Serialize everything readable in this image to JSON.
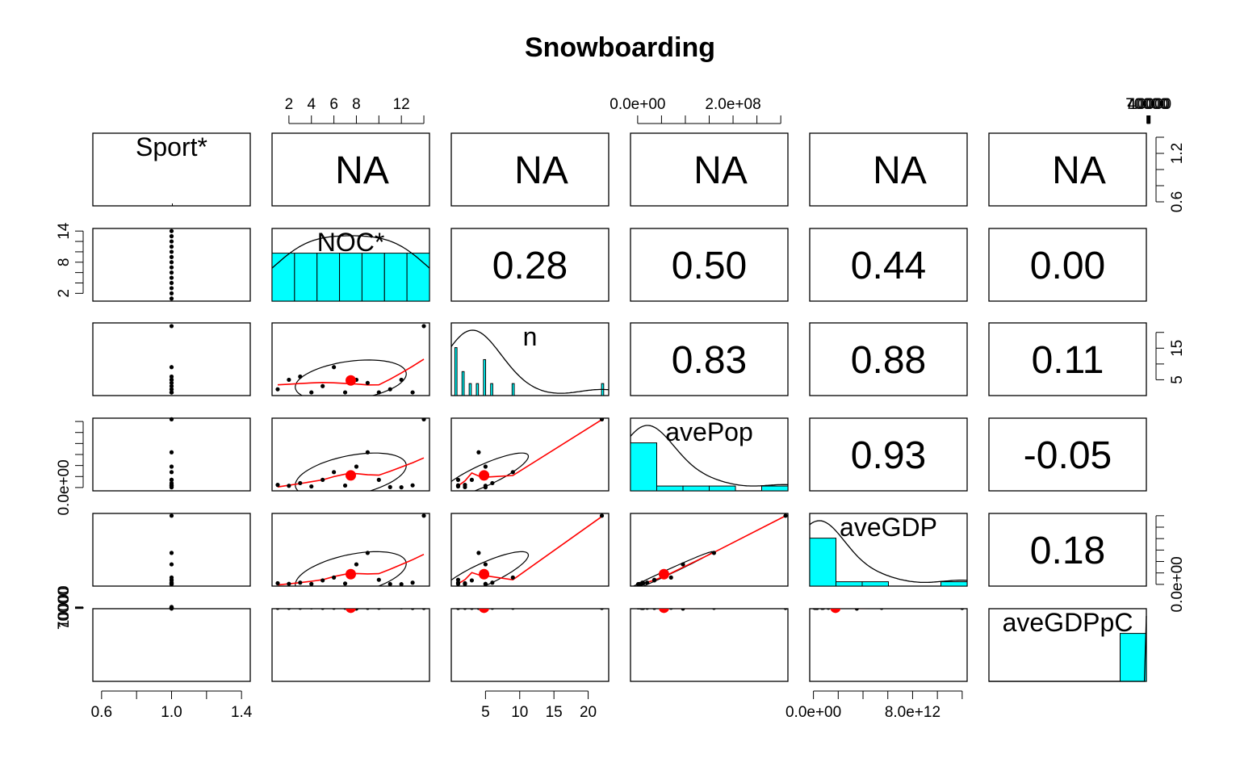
{
  "chart_data": {
    "type": "scatter",
    "title": "Snowboarding",
    "variables": [
      "Sport*",
      "NOC*",
      "n",
      "avePop",
      "aveGDP",
      "aveGDPpC"
    ],
    "diag_kind": [
      "none",
      "histogram",
      "histogram",
      "histogram",
      "histogram",
      "histogram"
    ],
    "correlations": [
      {
        "row": 0,
        "col": 1,
        "value": "NA"
      },
      {
        "row": 0,
        "col": 2,
        "value": "NA"
      },
      {
        "row": 0,
        "col": 3,
        "value": "NA"
      },
      {
        "row": 0,
        "col": 4,
        "value": "NA"
      },
      {
        "row": 0,
        "col": 5,
        "value": "NA"
      },
      {
        "row": 1,
        "col": 2,
        "value": "0.28"
      },
      {
        "row": 1,
        "col": 3,
        "value": "0.50"
      },
      {
        "row": 1,
        "col": 4,
        "value": "0.44"
      },
      {
        "row": 1,
        "col": 5,
        "value": "0.00"
      },
      {
        "row": 2,
        "col": 3,
        "value": "0.83"
      },
      {
        "row": 2,
        "col": 4,
        "value": "0.88"
      },
      {
        "row": 2,
        "col": 5,
        "value": "0.11"
      },
      {
        "row": 3,
        "col": 4,
        "value": "0.93"
      },
      {
        "row": 3,
        "col": 5,
        "value": "-0.05"
      },
      {
        "row": 4,
        "col": 5,
        "value": "0.18"
      }
    ],
    "axes": {
      "top": [
        {
          "col": 1,
          "ticks": [
            2,
            4,
            6,
            8,
            10,
            12,
            14
          ],
          "labels": [
            "2",
            "4",
            "6",
            "8",
            "",
            "12",
            ""
          ]
        },
        {
          "col": 3,
          "ticks": [
            0,
            50000000,
            100000000,
            150000000,
            200000000,
            250000000,
            300000000
          ],
          "labels": [
            "0.0e+00",
            "",
            "",
            "",
            "2.0e+08",
            "",
            ""
          ]
        },
        {
          "col": 5,
          "ticks": [
            10000,
            20000,
            30000,
            40000,
            50000,
            60000,
            70000
          ],
          "labels": [
            "10000",
            "",
            "",
            "40000",
            "",
            "",
            "70000"
          ]
        }
      ],
      "bottom": [
        {
          "col": 0,
          "ticks": [
            0.6,
            0.8,
            1.0,
            1.2,
            1.4
          ],
          "labels": [
            "0.6",
            "",
            "1.0",
            "",
            "1.4"
          ]
        },
        {
          "col": 2,
          "ticks": [
            5,
            10,
            15,
            20
          ],
          "labels": [
            "5",
            "10",
            "15",
            "20"
          ]
        },
        {
          "col": 4,
          "ticks": [
            0,
            2000000000000,
            4000000000000,
            6000000000000,
            8000000000000,
            10000000000000,
            12000000000000
          ],
          "labels": [
            "0.0e+00",
            "",
            "",
            "",
            "8.0e+12",
            "",
            ""
          ]
        }
      ],
      "left": [
        {
          "row": 1,
          "ticks": [
            2,
            4,
            6,
            8,
            10,
            12,
            14
          ],
          "labels": [
            "2",
            "",
            "",
            "8",
            "",
            "",
            "14"
          ]
        },
        {
          "row": 3,
          "ticks": [
            0,
            50000000,
            100000000,
            150000000,
            200000000,
            250000000,
            300000000
          ],
          "labels": [
            "0.0e+00",
            "",
            "",
            "",
            "",
            "",
            ""
          ]
        },
        {
          "row": 5,
          "ticks": [
            10000,
            20000,
            30000,
            40000,
            50000,
            60000,
            70000
          ],
          "labels": [
            "10000",
            "",
            "",
            "",
            "",
            "",
            "70000"
          ]
        }
      ],
      "right": [
        {
          "row": 0,
          "ticks": [
            0.6,
            0.8,
            1.0,
            1.2,
            1.4
          ],
          "labels": [
            "0.6",
            "",
            "",
            "1.2",
            ""
          ]
        },
        {
          "row": 2,
          "ticks": [
            5,
            10,
            15,
            20
          ],
          "labels": [
            "5",
            "",
            "15",
            ""
          ]
        },
        {
          "row": 4,
          "ticks": [
            0,
            2000000000000,
            4000000000000,
            6000000000000,
            8000000000000,
            10000000000000,
            12000000000000
          ],
          "labels": [
            "0.0e+00",
            "",
            "",
            "",
            "",
            "",
            ""
          ]
        }
      ]
    },
    "ranges": [
      [
        0.55,
        1.45
      ],
      [
        0.5,
        14.5
      ],
      [
        0,
        23
      ],
      [
        -15000000,
        315000000
      ],
      [
        -300000000000,
        12400000000000
      ],
      [
        3000000,
        80000
      ]
    ],
    "observations": [
      {
        "noc": 1,
        "n": 2,
        "pop": 12000000,
        "gdp": 200000000000,
        "gdppc": 45000
      },
      {
        "noc": 2,
        "n": 5,
        "pop": 8000000,
        "gdp": 100000000000,
        "gdppc": 43000
      },
      {
        "noc": 3,
        "n": 6,
        "pop": 20000000,
        "gdp": 300000000000,
        "gdppc": 42000
      },
      {
        "noc": 4,
        "n": 1,
        "pop": 5000000,
        "gdp": 80000000000,
        "gdppc": 30000
      },
      {
        "noc": 5,
        "n": 3,
        "pop": 35000000,
        "gdp": 700000000000,
        "gdppc": 44000
      },
      {
        "noc": 6,
        "n": 9,
        "pop": 70000000,
        "gdp": 1200000000000,
        "gdppc": 41000
      },
      {
        "noc": 7,
        "n": 1,
        "pop": 9000000,
        "gdp": 150000000000,
        "gdppc": 40000
      },
      {
        "noc": 8,
        "n": 5,
        "pop": 95000000,
        "gdp": 3500000000000,
        "gdppc": 75000
      },
      {
        "noc": 9,
        "n": 4,
        "pop": 160000000,
        "gdp": 5500000000000,
        "gdppc": 44000
      },
      {
        "noc": 10,
        "n": 1,
        "pop": 35000000,
        "gdp": 800000000000,
        "gdppc": 40000
      },
      {
        "noc": 11,
        "n": 2,
        "pop": 2000000,
        "gdp": 60000000000,
        "gdppc": 10000
      },
      {
        "noc": 12,
        "n": 5,
        "pop": 1000000,
        "gdp": 30000000000,
        "gdppc": 30000
      },
      {
        "noc": 13,
        "n": 1,
        "pop": 10000000,
        "gdp": 300000000000,
        "gdppc": 48000
      },
      {
        "noc": 14,
        "n": 22,
        "pop": 310000000,
        "gdp": 12000000000000,
        "gdppc": 50000
      }
    ]
  }
}
